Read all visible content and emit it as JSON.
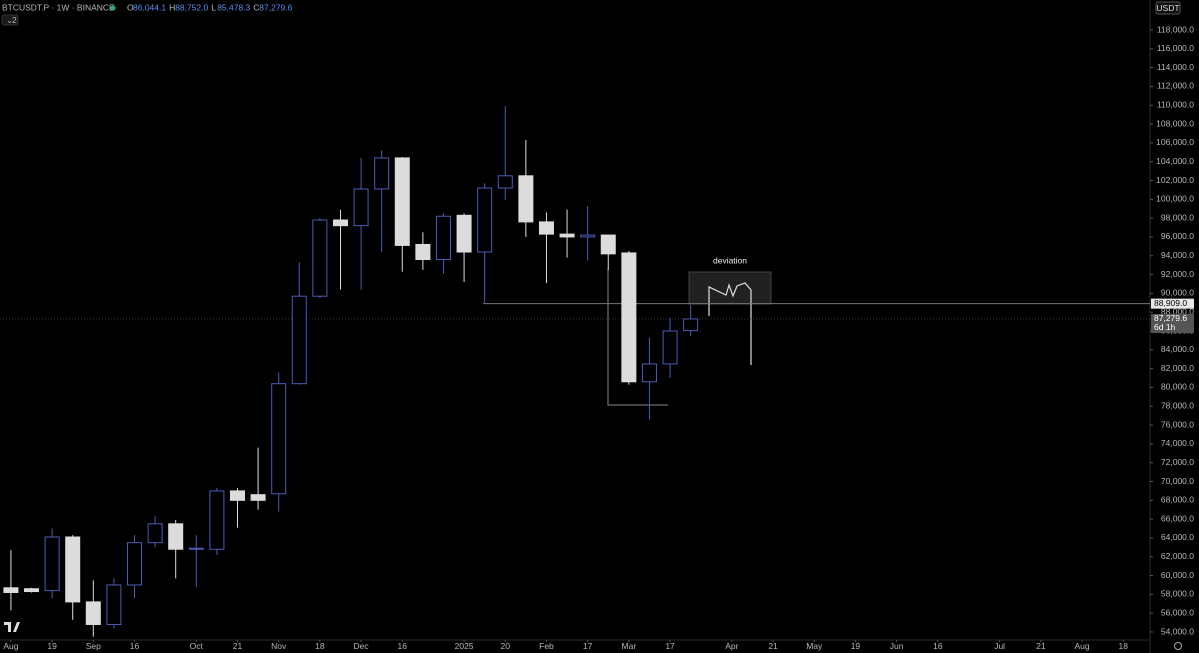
{
  "chart_data": {
    "type": "candlestick",
    "title": "BTCUSDT.P · 1W · BINANCE",
    "legend_ohlc": [
      {
        "key": "O",
        "label": "86,044.1"
      },
      {
        "key": "H",
        "label": "88,752.0"
      },
      {
        "key": "L",
        "label": "85,478.3"
      },
      {
        "key": "C",
        "label": "87,279.6"
      }
    ],
    "indicator_count": "2",
    "currency": "USDT",
    "annotation": "deviation",
    "countdown": "6d 1h",
    "up_color": "#4a5cb8",
    "down_color": "#dcdcdc",
    "open": [
      58700,
      58600,
      58400,
      64100,
      57200,
      54800,
      59000,
      63500,
      65500,
      62800,
      62800,
      69000,
      68600,
      68700,
      80400,
      89700,
      97800,
      97200,
      101100,
      104400,
      95200,
      93600,
      98300,
      94400,
      101200,
      102500,
      97600,
      96300,
      96000,
      96200,
      94300,
      80600,
      82500,
      86044.1
    ],
    "high": [
      62700,
      58700,
      65000,
      64300,
      59500,
      59700,
      64300,
      66300,
      65900,
      64300,
      69300,
      69300,
      73600,
      81600,
      93300,
      98000,
      98900,
      104400,
      105200,
      104500,
      96500,
      98500,
      98500,
      101700,
      109900,
      106300,
      98600,
      98900,
      99300,
      96200,
      94500,
      85300,
      87400,
      88752
    ],
    "low": [
      56300,
      58200,
      57600,
      55300,
      53500,
      54400,
      57600,
      63000,
      59700,
      58800,
      62200,
      65100,
      67000,
      66800,
      80300,
      89500,
      90400,
      90400,
      94400,
      92300,
      92500,
      92100,
      91200,
      89000,
      99900,
      96000,
      91100,
      93800,
      93500,
      92500,
      80300,
      76600,
      81000,
      85478.3
    ],
    "close": [
      58200,
      58300,
      64100,
      57200,
      54800,
      59000,
      63500,
      65500,
      62800,
      62900,
      69000,
      68000,
      68000,
      80400,
      89700,
      97800,
      97200,
      101100,
      104400,
      95100,
      93600,
      98200,
      94400,
      101200,
      102500,
      97600,
      96300,
      96000,
      96200,
      94200,
      80600,
      82500,
      86000,
      87279.6
    ],
    "xlim": [
      -0.53,
      55.3
    ],
    "xticks": [
      {
        "value": 0,
        "label": "Aug"
      },
      {
        "value": 2,
        "label": "19"
      },
      {
        "value": 4,
        "label": "Sep"
      },
      {
        "value": 6,
        "label": "16"
      },
      {
        "value": 9,
        "label": "Oct"
      },
      {
        "value": 11,
        "label": "21"
      },
      {
        "value": 13,
        "label": "Nov"
      },
      {
        "value": 15,
        "label": "18"
      },
      {
        "value": 17,
        "label": "Dec"
      },
      {
        "value": 19,
        "label": "16"
      },
      {
        "value": 22,
        "label": "2025"
      },
      {
        "value": 24,
        "label": "20"
      },
      {
        "value": 26,
        "label": "Feb"
      },
      {
        "value": 28,
        "label": "17"
      },
      {
        "value": 30,
        "label": "Mar"
      },
      {
        "value": 32,
        "label": "17"
      },
      {
        "value": 35,
        "label": "Apr"
      },
      {
        "value": 37,
        "label": "21"
      },
      {
        "value": 39,
        "label": "May"
      },
      {
        "value": 41,
        "label": "19"
      },
      {
        "value": 43,
        "label": "Jun"
      },
      {
        "value": 45,
        "label": "16"
      },
      {
        "value": 48,
        "label": "Jul"
      },
      {
        "value": 50,
        "label": "21"
      },
      {
        "value": 52,
        "label": "Aug"
      },
      {
        "value": 54,
        "label": "18"
      }
    ],
    "ylim": [
      53150,
      121190
    ],
    "yticks": [
      {
        "value": 54000,
        "label": "54,000.0"
      },
      {
        "value": 56000,
        "label": "56,000.0"
      },
      {
        "value": 58000,
        "label": "58,000.0"
      },
      {
        "value": 60000,
        "label": "60,000.0"
      },
      {
        "value": 62000,
        "label": "62,000.0"
      },
      {
        "value": 64000,
        "label": "64,000.0"
      },
      {
        "value": 66000,
        "label": "66,000.0"
      },
      {
        "value": 68000,
        "label": "68,000.0"
      },
      {
        "value": 70000,
        "label": "70,000.0"
      },
      {
        "value": 72000,
        "label": "72,000.0"
      },
      {
        "value": 74000,
        "label": "74,000.0"
      },
      {
        "value": 76000,
        "label": "76,000.0"
      },
      {
        "value": 78000,
        "label": "78,000.0"
      },
      {
        "value": 80000,
        "label": "80,000.0"
      },
      {
        "value": 82000,
        "label": "82,000.0"
      },
      {
        "value": 84000,
        "label": "84,000.0"
      },
      {
        "value": 86000,
        "label": "86,000.0"
      },
      {
        "value": 88000,
        "label": "88,000.0"
      },
      {
        "value": 90000,
        "label": "90,000.0"
      },
      {
        "value": 92000,
        "label": "92,000.0"
      },
      {
        "value": 94000,
        "label": "94,000.0"
      },
      {
        "value": 96000,
        "label": "96,000.0"
      },
      {
        "value": 98000,
        "label": "98,000.0"
      },
      {
        "value": 100000,
        "label": "100,000.0"
      },
      {
        "value": 102000,
        "label": "102,000.0"
      },
      {
        "value": 104000,
        "label": "104,000.0"
      },
      {
        "value": 106000,
        "label": "106,000.0"
      },
      {
        "value": 108000,
        "label": "108,000.0"
      },
      {
        "value": 110000,
        "label": "110,000.0"
      },
      {
        "value": 112000,
        "label": "112,000.0"
      },
      {
        "value": 114000,
        "label": "114,000.0"
      },
      {
        "value": 116000,
        "label": "116,000.0"
      },
      {
        "value": 118000,
        "label": "118,000.0"
      }
    ],
    "price_lines": [
      {
        "value": 88909,
        "label": "88,909.0"
      },
      {
        "value": 87279.6,
        "label": "87,279.6"
      }
    ]
  }
}
